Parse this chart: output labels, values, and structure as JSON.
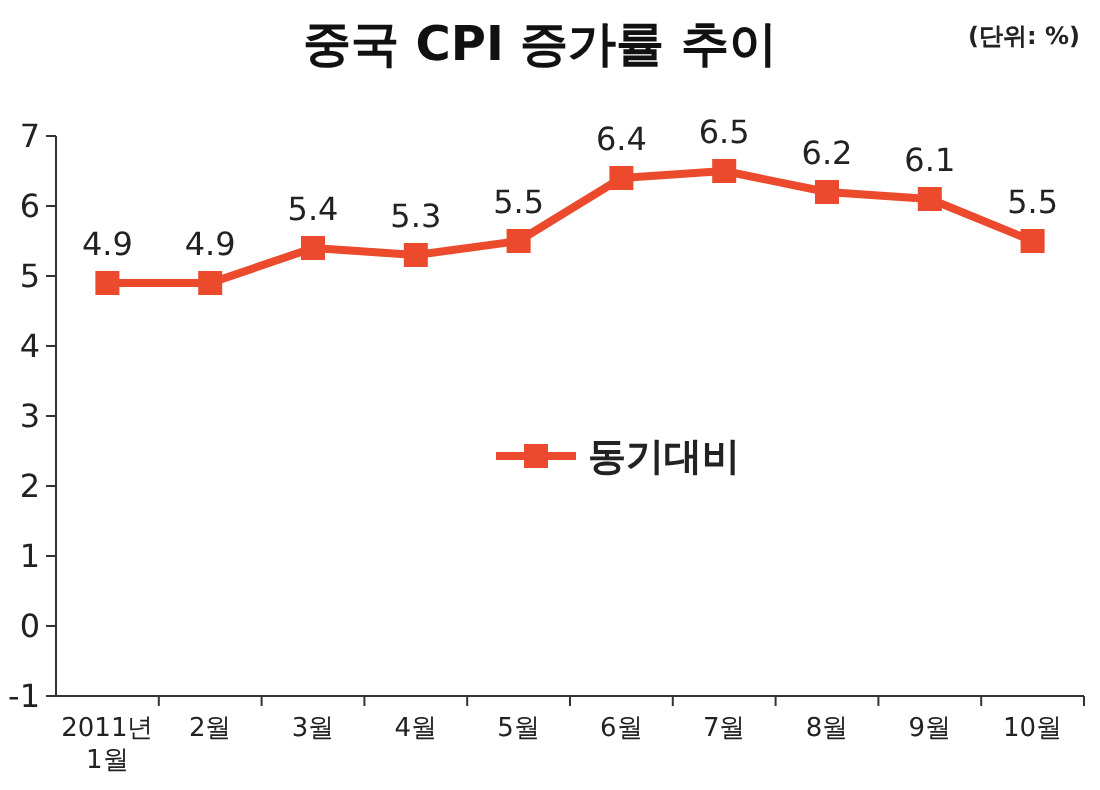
{
  "chart_data": {
    "type": "line",
    "title": "중국 CPI 증가률 추이",
    "annotations": [
      "(단위: %)"
    ],
    "categories": [
      "2011년\n1월",
      "2월",
      "3월",
      "4월",
      "5월",
      "6월",
      "7월",
      "8월",
      "9월",
      "10월"
    ],
    "series": [
      {
        "name": "동기대비",
        "color": "#ec4a2c",
        "values": [
          4.9,
          4.9,
          5.4,
          5.3,
          5.5,
          6.4,
          6.5,
          6.2,
          6.1,
          5.5
        ]
      }
    ],
    "ylim": [
      -1,
      7
    ],
    "yticks": [
      -1,
      0,
      1,
      2,
      3,
      4,
      5,
      6,
      7
    ],
    "grid": false,
    "legend": "center",
    "marker": "square",
    "line_style": "solid",
    "data_labels": true
  }
}
